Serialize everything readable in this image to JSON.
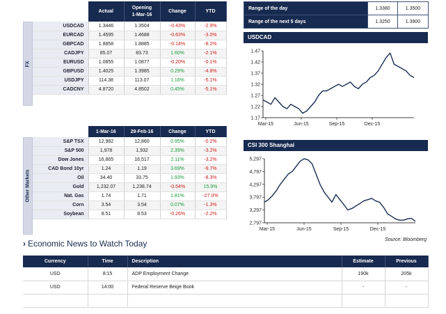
{
  "fx": {
    "section_label": "FX",
    "headers": [
      "Actual",
      "Opening\n1-Mar-16",
      "Change",
      "YTD"
    ],
    "rows": [
      {
        "name": "USDCAD",
        "actual": "1.3446",
        "opening": "1.3504",
        "change": "-0.43%",
        "ytd": "-2.9%"
      },
      {
        "name": "EURCAD",
        "actual": "1.4595",
        "opening": "1.4688",
        "change": "-0.63%",
        "ytd": "-3.0%"
      },
      {
        "name": "GBPCAD",
        "actual": "1.8858",
        "opening": "1.8885",
        "change": "-0.14%",
        "ytd": "-8.2%"
      },
      {
        "name": "CADJPY",
        "actual": "85.07",
        "opening": "83.73",
        "change": "1.60%",
        "ytd": "-2.1%"
      },
      {
        "name": "EURUSD",
        "actual": "1.0855",
        "opening": "1.0877",
        "change": "-0.20%",
        "ytd": "-0.1%"
      },
      {
        "name": "GBPUSD",
        "actual": "1.4025",
        "opening": "1.3985",
        "change": "0.29%",
        "ytd": "-4.8%"
      },
      {
        "name": "USDJPY",
        "actual": "114.38",
        "opening": "113.07",
        "change": "1.16%",
        "ytd": "-5.1%"
      },
      {
        "name": "CADCNY",
        "actual": "4.8720",
        "opening": "4.8502",
        "change": "0.45%",
        "ytd": "-5.1%"
      }
    ]
  },
  "other": {
    "section_label": "Other Markets",
    "headers": [
      "1-Mar-16",
      "29-Feb-16",
      "Change",
      "YTD"
    ],
    "rows": [
      {
        "name": "S&P TSX",
        "cur": "12,982",
        "prev": "12,860",
        "change": "0.95%",
        "ytd": "-0.2%"
      },
      {
        "name": "S&P 500",
        "cur": "1,978",
        "prev": "1,932",
        "change": "2.39%",
        "ytd": "-3.2%"
      },
      {
        "name": "Dow Jones",
        "cur": "16,865",
        "prev": "16,517",
        "change": "2.11%",
        "ytd": "-3.2%"
      },
      {
        "name": "CAD Bond 10yr",
        "cur": "1.24",
        "prev": "1.19",
        "change": "3.69%",
        "ytd": "-9.7%"
      },
      {
        "name": "Oil",
        "cur": "34.40",
        "prev": "33.75",
        "change": "1.93%",
        "ytd": "-8.3%"
      },
      {
        "name": "Gold",
        "cur": "1,232.07",
        "prev": "1,238.74",
        "change": "-0.54%",
        "ytd": "15.9%"
      },
      {
        "name": "Nat. Gas",
        "cur": "1.74",
        "prev": "1.71",
        "change": "1.81%",
        "ytd": "-27.0%"
      },
      {
        "name": "Corn",
        "cur": "3.54",
        "prev": "3.54",
        "change": "0.07%",
        "ytd": "-1.3%"
      },
      {
        "name": "Soybean",
        "cur": "8.51",
        "prev": "8.53",
        "change": "-0.26%",
        "ytd": "-2.2%"
      }
    ]
  },
  "range": {
    "rows": [
      {
        "label": "Range of the day",
        "low": "1.3380",
        "high": "1.3500"
      },
      {
        "label": "Range of the next 5 days",
        "low": "1.3250",
        "high": "1.3900"
      }
    ]
  },
  "source_note": "Source: Bloomberg",
  "news": {
    "title": "Economic News to Watch Today",
    "headers": [
      "Currency",
      "Time",
      "Description",
      "Estimate",
      "Previous"
    ],
    "rows": [
      {
        "currency": "USD",
        "time": "8:15",
        "description": "ADP Employment Change",
        "estimate": "190k",
        "previous": "205k"
      },
      {
        "currency": "USD",
        "time": "14:00",
        "description": "Federal Reserve Beige Book",
        "estimate": "-",
        "previous": "-"
      }
    ]
  },
  "colors": {
    "navy": "#172a4f",
    "positive": "#169a38",
    "negative": "#d11a1a"
  },
  "chart_data": [
    {
      "type": "line",
      "title": "USDCAD",
      "x_ticks": [
        "Mar-15",
        "Jun-15",
        "Sep-15",
        "Dec-15"
      ],
      "y_ticks": [
        "1.47",
        "1.42",
        "1.37",
        "1.32",
        "1.27",
        "1.22",
        "1.17"
      ],
      "ylim": [
        1.17,
        1.47
      ],
      "y": [
        1.25,
        1.24,
        1.23,
        1.26,
        1.24,
        1.22,
        1.21,
        1.23,
        1.22,
        1.21,
        1.19,
        1.2,
        1.22,
        1.24,
        1.27,
        1.29,
        1.29,
        1.3,
        1.31,
        1.32,
        1.31,
        1.32,
        1.33,
        1.31,
        1.3,
        1.32,
        1.33,
        1.35,
        1.36,
        1.38,
        1.41,
        1.44,
        1.46,
        1.41,
        1.4,
        1.39,
        1.38,
        1.36,
        1.35
      ]
    },
    {
      "type": "line",
      "title": "CSI 300 Shanghai",
      "x_ticks": [
        "Mar-15",
        "Jun-15",
        "Sep-15",
        "Dec-15"
      ],
      "y_ticks": [
        "5,297",
        "4,797",
        "4,297",
        "3,797",
        "3,297",
        "2,797"
      ],
      "ylim": [
        2797,
        5297
      ],
      "y": [
        3600,
        3700,
        3850,
        4050,
        4300,
        4500,
        4700,
        4800,
        5000,
        5200,
        5300,
        5250,
        5100,
        4700,
        4300,
        4000,
        3800,
        3600,
        3900,
        3700,
        3500,
        3300,
        3350,
        3450,
        3550,
        3650,
        3700,
        3750,
        3650,
        3600,
        3400,
        3150,
        3050,
        2950,
        2900,
        2900,
        2950,
        2970,
        2850
      ]
    }
  ]
}
